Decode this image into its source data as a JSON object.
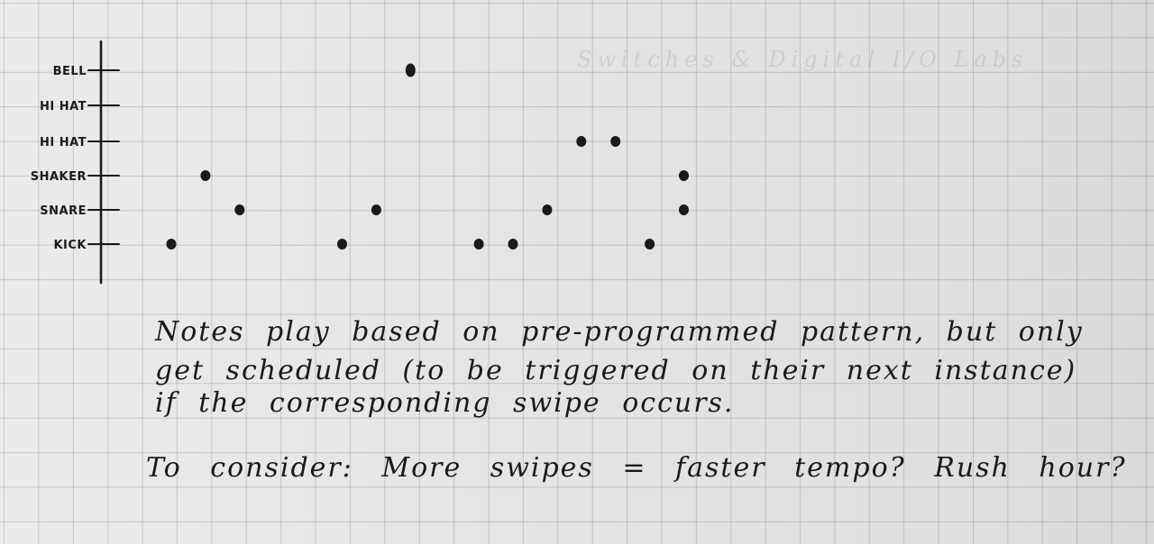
{
  "background_text": "Switches & Digital I/O Labs",
  "chart_data": {
    "type": "scatter",
    "title": "",
    "xlabel": "",
    "ylabel": "",
    "y_categories": [
      "KICK",
      "SNARE",
      "SHAKER",
      "HI HAT",
      "HI HAT",
      "BELL"
    ],
    "series": [
      {
        "points": [
          {
            "x": 1,
            "y": "KICK"
          },
          {
            "x": 2,
            "y": "SHAKER"
          },
          {
            "x": 3,
            "y": "SNARE"
          },
          {
            "x": 6,
            "y": "KICK"
          },
          {
            "x": 7,
            "y": "SNARE"
          },
          {
            "x": 8,
            "y": "BELL"
          },
          {
            "x": 10,
            "y": "KICK"
          },
          {
            "x": 11,
            "y": "KICK"
          },
          {
            "x": 12,
            "y": "SNARE"
          },
          {
            "x": 13,
            "y": "HI HAT"
          },
          {
            "x": 14,
            "y": "HI HAT"
          },
          {
            "x": 15,
            "y": "KICK"
          },
          {
            "x": 16,
            "y": "SNARE"
          },
          {
            "x": 16,
            "y": "SHAKER"
          }
        ]
      }
    ]
  },
  "notes": {
    "line1": "Notes play based on pre-programmed pattern, but only",
    "line2": "get scheduled (to be triggered on their next instance)",
    "line3": "if the corresponding swipe occurs.",
    "line4": "To consider: More swipes = faster tempo? Rush hour?"
  },
  "colors": {
    "ink": "#1a1a1a",
    "paper": "#ebebea",
    "grid": "#9a9a9a"
  }
}
